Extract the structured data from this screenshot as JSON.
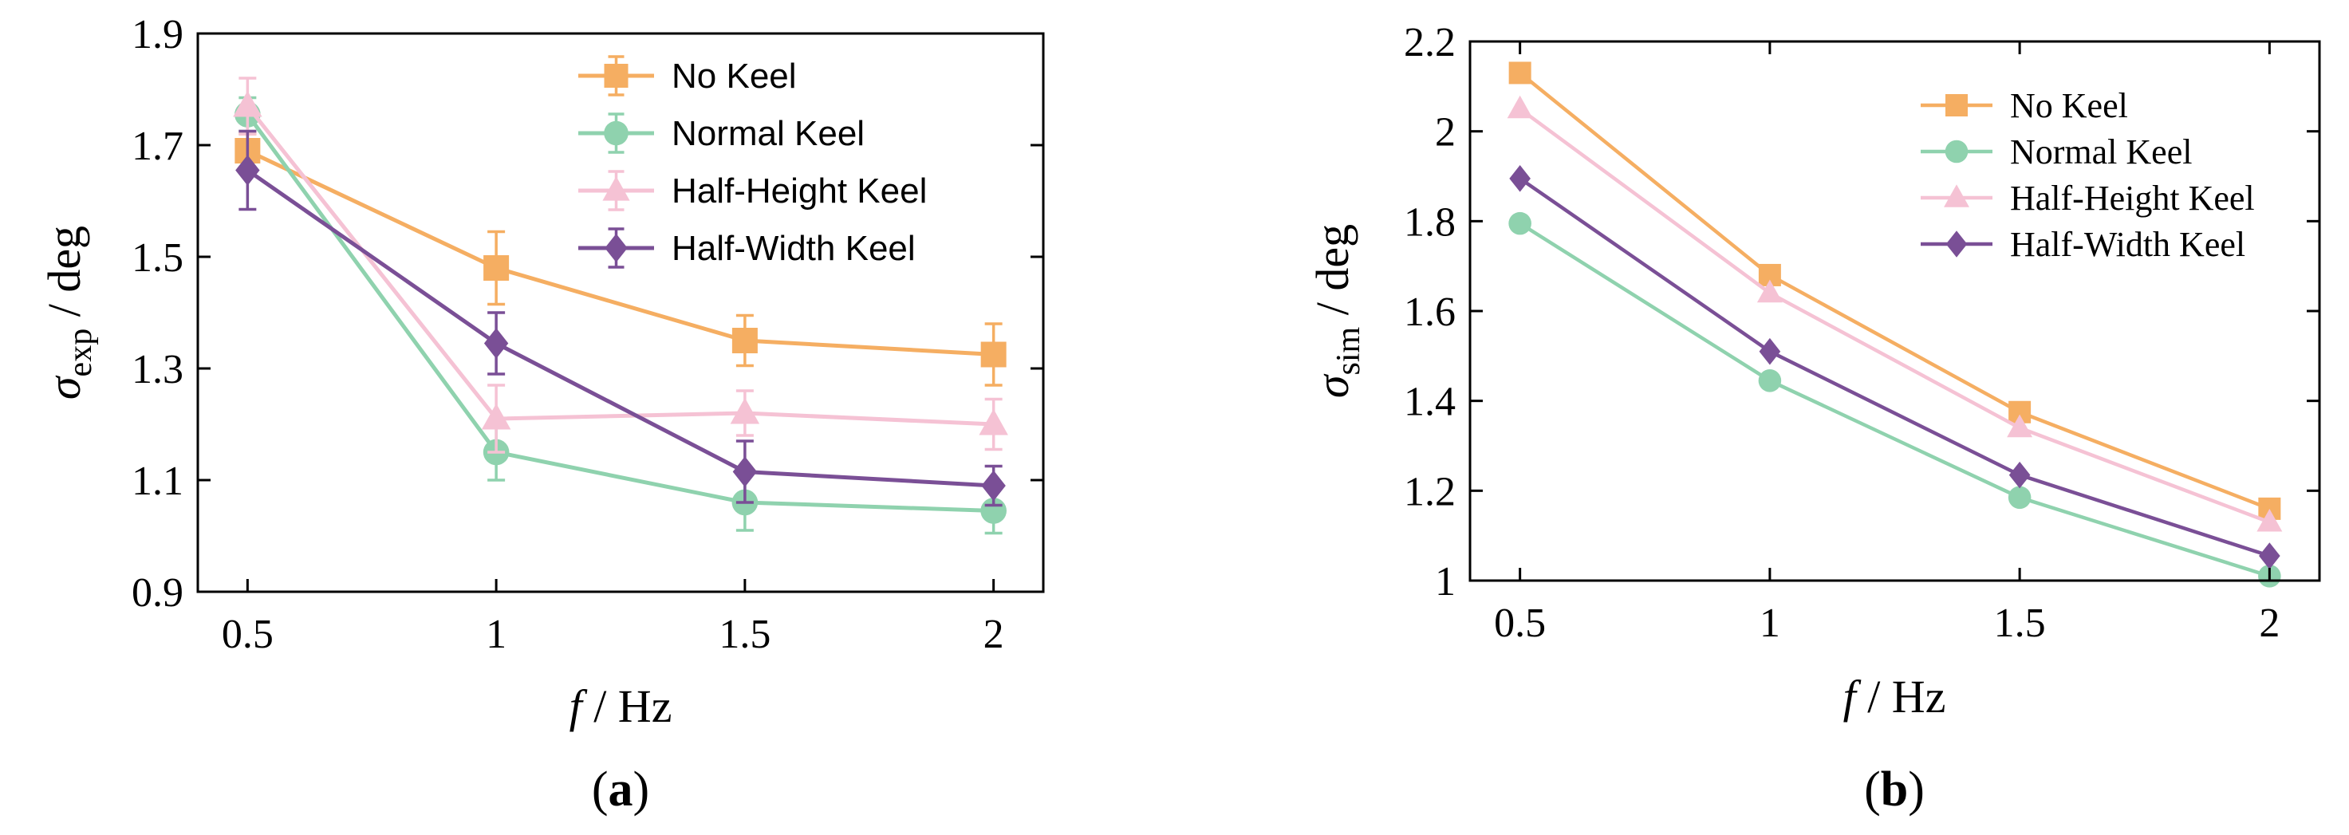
{
  "colors": {
    "no_keel": "#F5AE62",
    "normal_keel": "#8FD2AE",
    "half_height_keel": "#F5C2D4",
    "half_width_keel": "#7A4F96"
  },
  "chart_data": [
    {
      "type": "line",
      "panel_label_open": "(",
      "panel_label_letter": "a",
      "panel_label_close": ")",
      "xlabel": "f",
      "xlabel_unit": " / Hz",
      "ylabel_symbol": "σ",
      "ylabel_sub": "exp",
      "ylabel_unit": " / deg",
      "x": [
        0.5,
        1,
        1.5,
        2
      ],
      "xticks": [
        "0.5",
        "1",
        "1.5",
        "2"
      ],
      "xlim": [
        0.4,
        2.1
      ],
      "ylim": [
        0.9,
        1.9
      ],
      "yticks": [
        "0.9",
        "1.1",
        "1.3",
        "1.5",
        "1.7",
        "1.9"
      ],
      "ytick_values": [
        0.9,
        1.1,
        1.3,
        1.5,
        1.7,
        1.9
      ],
      "error_bars": true,
      "legend_position": "top-right",
      "series": [
        {
          "name": "No Keel",
          "marker": "square",
          "color_key": "no_keel",
          "values": [
            1.69,
            1.48,
            1.35,
            1.325
          ],
          "errors": [
            0.03,
            0.065,
            0.045,
            0.055
          ]
        },
        {
          "name": "Normal Keel",
          "marker": "circle",
          "color_key": "normal_keel",
          "values": [
            1.755,
            1.15,
            1.06,
            1.045
          ],
          "errors": [
            0.03,
            0.05,
            0.05,
            0.04
          ]
        },
        {
          "name": "Half-Height Keel",
          "marker": "triangle",
          "color_key": "half_height_keel",
          "values": [
            1.77,
            1.21,
            1.22,
            1.2
          ],
          "errors": [
            0.05,
            0.06,
            0.04,
            0.045
          ]
        },
        {
          "name": "Half-Width Keel",
          "marker": "diamond",
          "color_key": "half_width_keel",
          "values": [
            1.655,
            1.345,
            1.115,
            1.09
          ],
          "errors": [
            0.07,
            0.055,
            0.055,
            0.035
          ]
        }
      ]
    },
    {
      "type": "line",
      "panel_label_open": "(",
      "panel_label_letter": "b",
      "panel_label_close": ")",
      "xlabel": "f",
      "xlabel_unit": " / Hz",
      "ylabel_symbol": "σ",
      "ylabel_sub": "sim",
      "ylabel_unit": " / deg",
      "x": [
        0.5,
        1,
        1.5,
        2
      ],
      "xticks": [
        "0.5",
        "1",
        "1.5",
        "2"
      ],
      "xlim": [
        0.4,
        2.1
      ],
      "ylim": [
        1.0,
        2.2
      ],
      "yticks": [
        "1",
        "1.2",
        "1.4",
        "1.6",
        "1.8",
        "2",
        "2.2"
      ],
      "ytick_values": [
        1.0,
        1.2,
        1.4,
        1.6,
        1.8,
        2.0,
        2.2
      ],
      "error_bars": false,
      "legend_position": "top-right",
      "series": [
        {
          "name": "No Keel",
          "marker": "square",
          "color_key": "no_keel",
          "values": [
            2.13,
            1.68,
            1.375,
            1.16
          ]
        },
        {
          "name": "Normal Keel",
          "marker": "circle",
          "color_key": "normal_keel",
          "values": [
            1.795,
            1.445,
            1.185,
            1.01
          ]
        },
        {
          "name": "Half-Height Keel",
          "marker": "triangle",
          "color_key": "half_height_keel",
          "values": [
            2.05,
            1.64,
            1.34,
            1.13
          ]
        },
        {
          "name": "Half-Width Keel",
          "marker": "diamond",
          "color_key": "half_width_keel",
          "values": [
            1.895,
            1.51,
            1.235,
            1.055
          ]
        }
      ]
    }
  ]
}
